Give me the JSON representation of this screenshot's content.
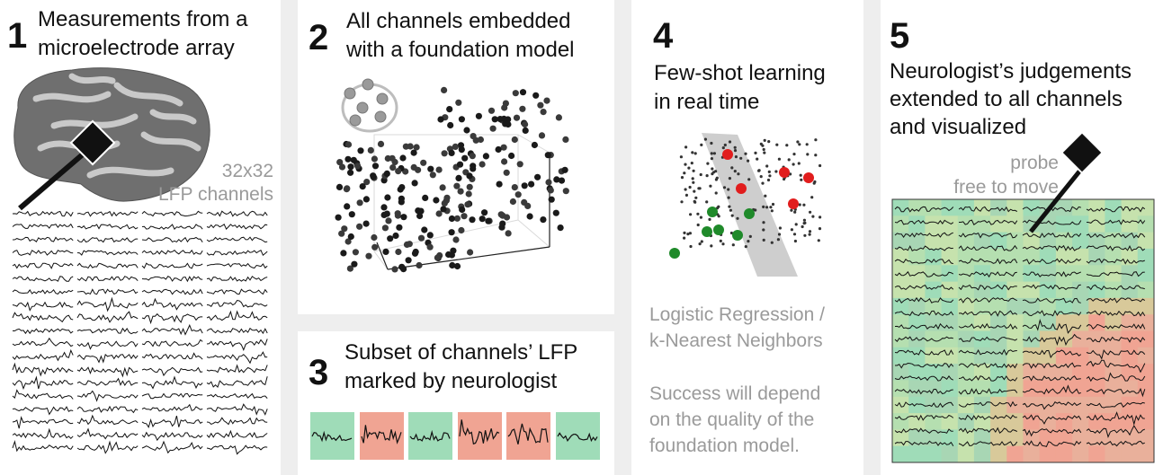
{
  "colors": {
    "background": "#eeeeee",
    "panel": "#ffffff",
    "normal_green": "#9fdcb8",
    "marked_red": "#f0a493",
    "gray_text": "#9a9a9a",
    "point_red": "#e11d1d",
    "point_green": "#1f8a2a"
  },
  "panel1": {
    "number": "1",
    "title_line1": "Measurements from a",
    "title_line2": "microelectrode array",
    "grid_label_line1": "32x32",
    "grid_label_line2": "LFP channels",
    "icons": [
      "brain-icon",
      "probe-icon"
    ]
  },
  "panel2": {
    "number": "2",
    "title_line1": "All channels embedded",
    "title_line2": "with a foundation model",
    "icons": [
      "network-icon"
    ]
  },
  "panel3": {
    "number": "3",
    "title_line1": "Subset of channels’ LFP",
    "title_line2": "marked by neurologist",
    "samples": [
      "normal",
      "marked",
      "normal",
      "marked",
      "marked",
      "normal"
    ]
  },
  "panel4": {
    "number": "4",
    "title_line1": "Few-shot learning",
    "title_line2": "in real time",
    "method_line1": "Logistic Regression /",
    "method_line2": "k-Nearest Neighbors",
    "note_line1": "Success will depend",
    "note_line2": "on the quality of the",
    "note_line3": "foundation model."
  },
  "panel5": {
    "number": "5",
    "title_line1": "Neurologist’s judgements",
    "title_line2": "extended to all channels",
    "title_line3": "and visualized",
    "probe_line1": "probe",
    "probe_line2": "free to move",
    "icons": [
      "probe-icon"
    ]
  }
}
